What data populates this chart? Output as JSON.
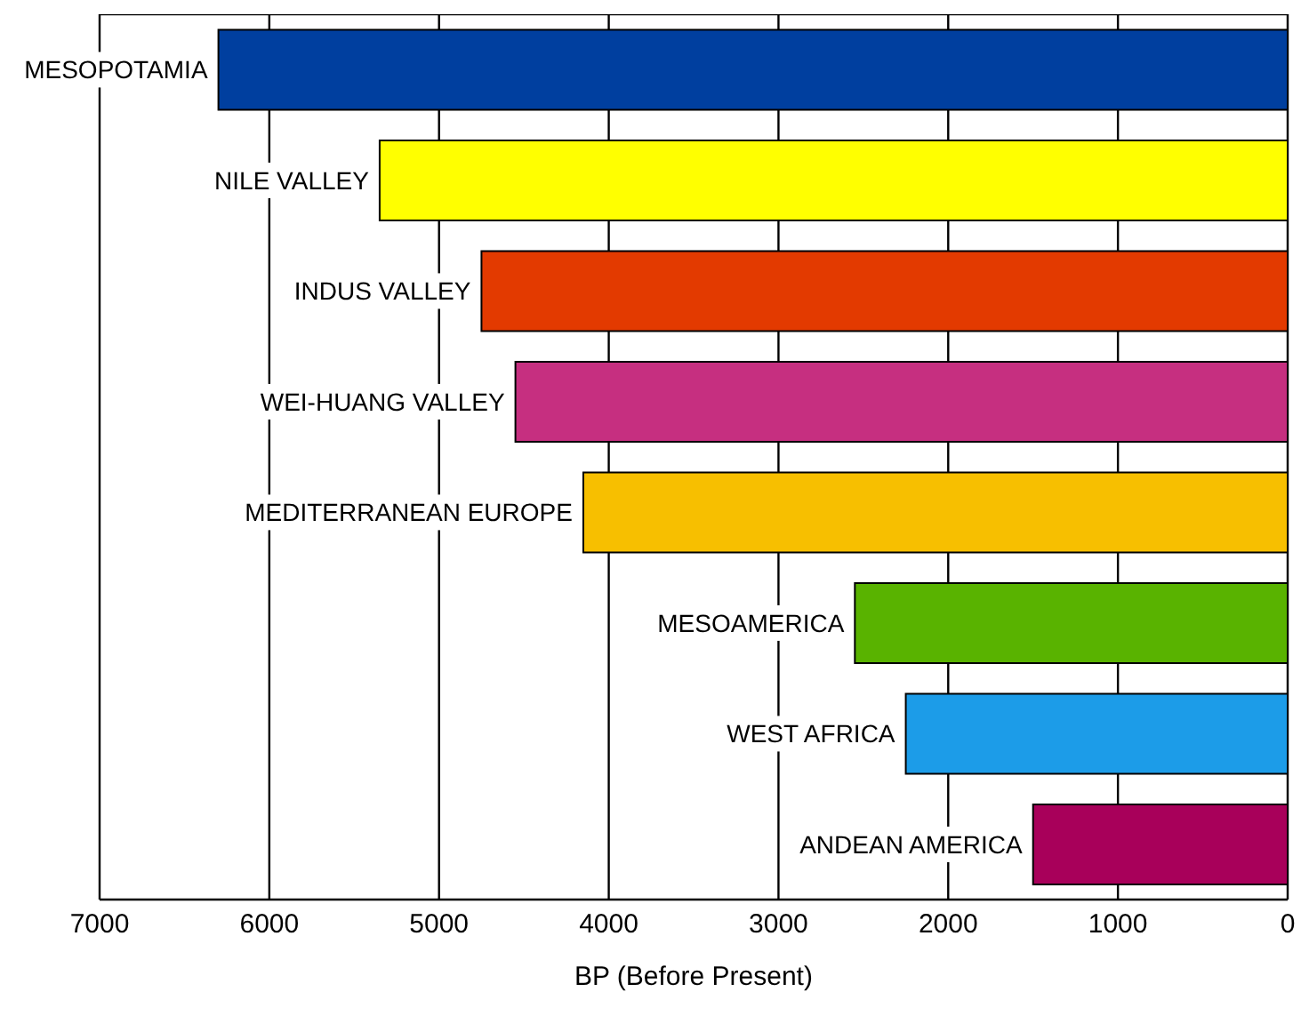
{
  "chart_data": {
    "type": "bar",
    "orientation": "horizontal",
    "xlabel": "BP (Before Present)",
    "categories": [
      "MESOPOTAMIA",
      "NILE VALLEY",
      "INDUS VALLEY",
      "WEI-HUANG VALLEY",
      "MEDITERRANEAN EUROPE",
      "MESOAMERICA",
      "WEST AFRICA",
      "ANDEAN AMERICA"
    ],
    "values": [
      6300,
      5350,
      4750,
      4550,
      4150,
      2550,
      2250,
      1500
    ],
    "colors": [
      "#003f9f",
      "#ffff00",
      "#e33a00",
      "#c62f80",
      "#f7bf00",
      "#59b300",
      "#1c9ce8",
      "#a8005a"
    ],
    "xlim": [
      7000,
      0
    ],
    "xticks": [
      7000,
      6000,
      5000,
      4000,
      3000,
      2000,
      1000,
      0
    ],
    "grid": "x"
  }
}
